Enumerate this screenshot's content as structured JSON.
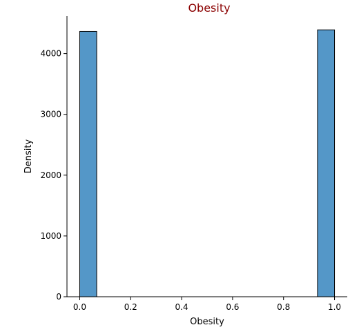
{
  "chart_data": {
    "type": "bar",
    "title": "Obesity",
    "xlabel": "Obesity",
    "ylabel": "Density",
    "xlim": [
      -0.05,
      1.05
    ],
    "ylim": [
      0,
      4620
    ],
    "xticks": [
      "0.0",
      "0.2",
      "0.4",
      "0.6",
      "0.8",
      "1.0"
    ],
    "yticks": [
      "0",
      "1000",
      "2000",
      "3000",
      "4000"
    ],
    "bins": [
      {
        "x_start": 0.0,
        "x_end": 0.0667,
        "value": 4365
      },
      {
        "x_start": 0.9333,
        "x_end": 1.0,
        "value": 4390
      }
    ],
    "grid": false,
    "legend": "none"
  },
  "colors": {
    "bar_fill": "#5497c8",
    "bar_edge": "#000000",
    "title": "#8b0000",
    "axis": "#000000"
  }
}
